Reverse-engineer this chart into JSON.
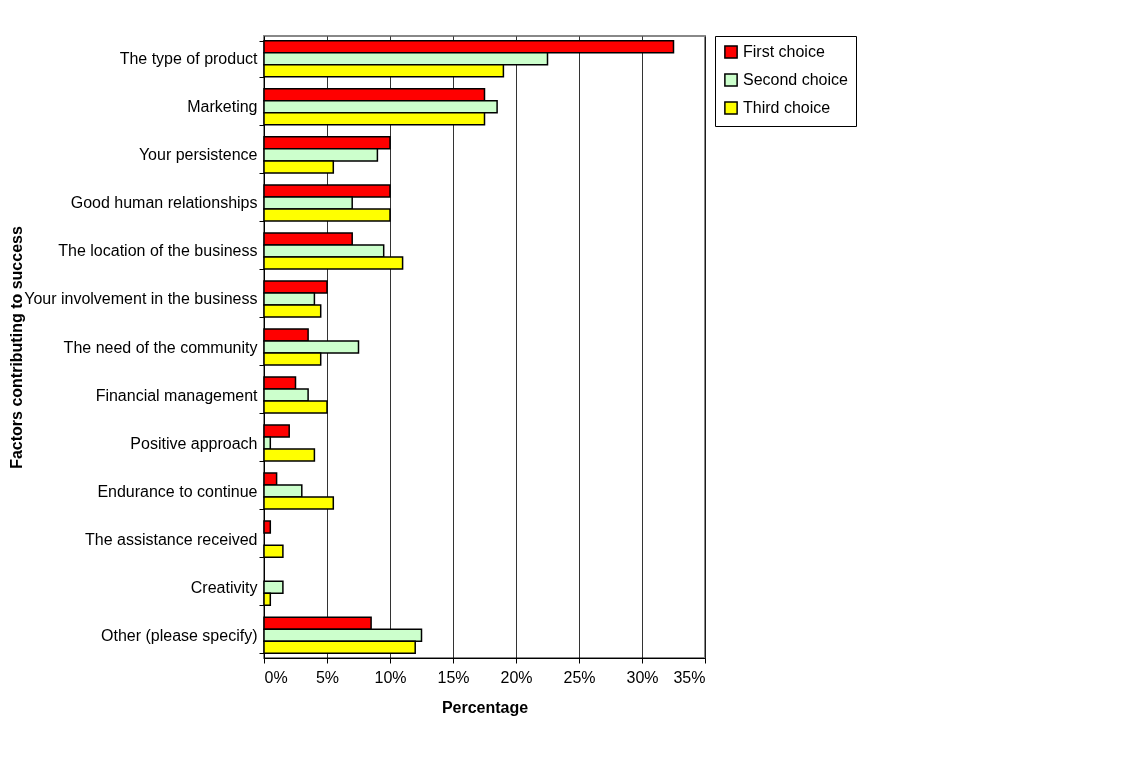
{
  "chart_data": {
    "type": "bar",
    "orientation": "horizontal",
    "xlabel": "Percentage",
    "ylabel": "Factors contributing to success",
    "categories": [
      "The type of product",
      "Marketing",
      "Your persistence",
      "Good human relationships",
      "The location of the business",
      "Your involvement in the business",
      "The need of the community",
      "Financial management",
      "Positive approach",
      "Endurance to continue",
      "The assistance received",
      "Creativity",
      "Other (please specify)"
    ],
    "series": [
      {
        "name": "First choice",
        "color": "#ff0000",
        "values": [
          32.5,
          17.5,
          10,
          10,
          7,
          5,
          3.5,
          2.5,
          2,
          1,
          0.5,
          null,
          8.5
        ]
      },
      {
        "name": "Second choice",
        "color": "#ccffcc",
        "values": [
          22.5,
          18.5,
          9,
          7,
          9.5,
          4,
          7.5,
          3.5,
          0.5,
          3,
          null,
          1.5,
          12.5
        ]
      },
      {
        "name": "Third choice",
        "color": "#ffff00",
        "values": [
          19,
          17.5,
          5.5,
          10,
          11,
          4.5,
          4.5,
          5,
          4,
          5.5,
          1.5,
          0.5,
          12
        ]
      }
    ],
    "xlim": [
      0,
      35
    ],
    "xticks": [
      {
        "value": 0,
        "label": "0%"
      },
      {
        "value": 5,
        "label": "5%"
      },
      {
        "value": 10,
        "label": "10%"
      },
      {
        "value": 15,
        "label": "15%"
      },
      {
        "value": 20,
        "label": "20%"
      },
      {
        "value": 25,
        "label": "25%"
      },
      {
        "value": 30,
        "label": "30%"
      },
      {
        "value": 35,
        "label": "35%"
      }
    ],
    "grid": "x",
    "legend": "right"
  }
}
